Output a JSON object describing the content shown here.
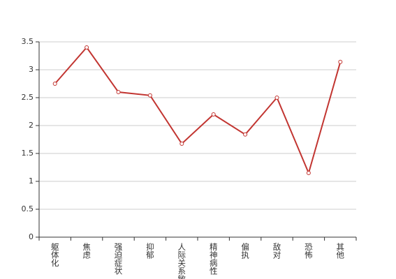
{
  "chart_data": {
    "type": "line",
    "categories": [
      "躯体化",
      "焦虑",
      "强迫症状",
      "抑郁",
      "人际关系敏感",
      "精神病性",
      "偏执",
      "敌对",
      "恐怖",
      "其他"
    ],
    "values": [
      2.75,
      3.4,
      2.6,
      2.54,
      1.675,
      2.2,
      1.84,
      2.5,
      1.15,
      3.14
    ],
    "color": "#c23531",
    "ylim": [
      0,
      3.5
    ],
    "yticks": [
      0,
      0.5,
      1,
      1.5,
      2,
      2.5,
      3,
      3.5
    ],
    "grid": true
  }
}
